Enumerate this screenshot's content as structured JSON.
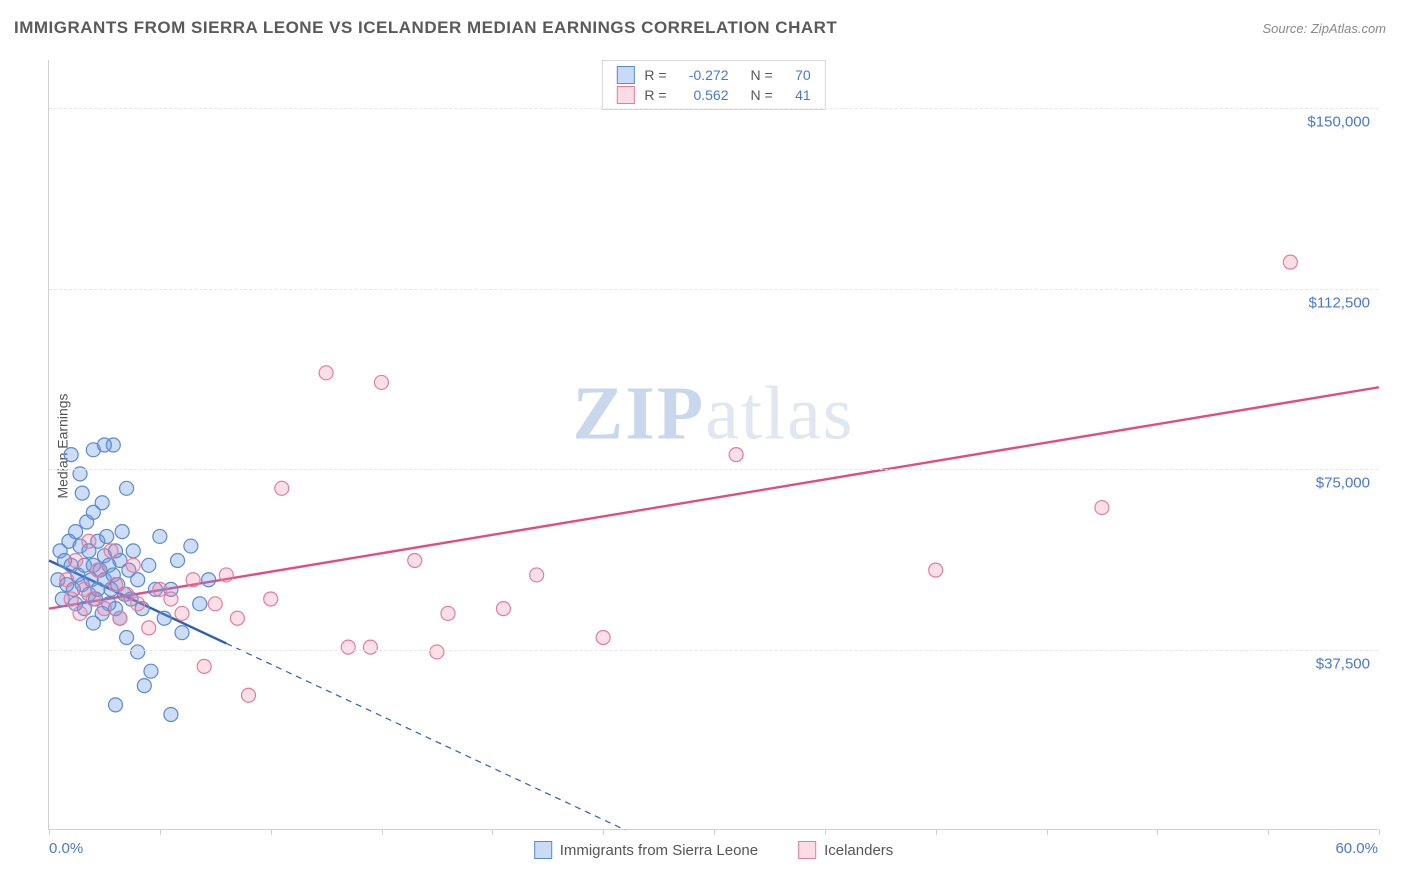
{
  "title": "IMMIGRANTS FROM SIERRA LEONE VS ICELANDER MEDIAN EARNINGS CORRELATION CHART",
  "source": "Source: ZipAtlas.com",
  "watermark_a": "ZIP",
  "watermark_b": "atlas",
  "chart": {
    "type": "scatter-with-regression",
    "ylabel": "Median Earnings",
    "xlim": [
      0,
      60
    ],
    "ylim": [
      0,
      160000
    ],
    "x_ticks_minor": [
      0,
      5,
      10,
      15,
      20,
      25,
      30,
      35,
      40,
      45,
      50,
      55,
      60
    ],
    "x_axis_start_label": "0.0%",
    "x_axis_end_label": "60.0%",
    "y_gridlines": [
      37500,
      75000,
      112500,
      150000
    ],
    "y_tick_labels": [
      "$37,500",
      "$75,000",
      "$112,500",
      "$150,000"
    ],
    "background_color": "#ffffff",
    "grid_color": "#e6e6e6",
    "axis_color": "#d0d0d0",
    "tick_label_color": "#4a76d6",
    "marker_radius": 7,
    "marker_stroke_width": 1.2,
    "series": [
      {
        "name": "Immigrants from Sierra Leone",
        "R": "-0.272",
        "N": "70",
        "color_fill": "rgba(100,150,230,0.32)",
        "color_stroke": "#5a8ad0",
        "regression": {
          "x1": 0,
          "y1": 56000,
          "x2": 26,
          "y2": 0,
          "solid_until_x": 8,
          "stroke": "#2f5db8",
          "stroke_width": 2.4
        },
        "points": [
          [
            0.4,
            52000
          ],
          [
            0.5,
            58000
          ],
          [
            0.6,
            48000
          ],
          [
            0.7,
            56000
          ],
          [
            0.8,
            51000
          ],
          [
            0.9,
            60000
          ],
          [
            1.0,
            55000
          ],
          [
            1.1,
            50000
          ],
          [
            1.2,
            62000
          ],
          [
            1.2,
            47000
          ],
          [
            1.3,
            53000
          ],
          [
            1.4,
            59000
          ],
          [
            1.5,
            51000
          ],
          [
            1.5,
            70000
          ],
          [
            1.6,
            46000
          ],
          [
            1.6,
            55000
          ],
          [
            1.7,
            64000
          ],
          [
            1.8,
            49000
          ],
          [
            1.8,
            58000
          ],
          [
            1.9,
            52000
          ],
          [
            2.0,
            55000
          ],
          [
            2.0,
            79000
          ],
          [
            2.0,
            66000
          ],
          [
            2.1,
            48000
          ],
          [
            2.2,
            60000
          ],
          [
            2.2,
            50000
          ],
          [
            2.3,
            54000
          ],
          [
            2.4,
            68000
          ],
          [
            2.4,
            45000
          ],
          [
            2.5,
            57000
          ],
          [
            2.5,
            52000
          ],
          [
            2.6,
            61000
          ],
          [
            2.7,
            47000
          ],
          [
            2.7,
            55000
          ],
          [
            2.8,
            50000
          ],
          [
            2.9,
            80000
          ],
          [
            2.9,
            53000
          ],
          [
            3.0,
            58000
          ],
          [
            3.0,
            46000
          ],
          [
            3.1,
            51000
          ],
          [
            3.2,
            44000
          ],
          [
            3.2,
            56000
          ],
          [
            3.3,
            62000
          ],
          [
            3.4,
            49000
          ],
          [
            3.5,
            71000
          ],
          [
            3.5,
            40000
          ],
          [
            3.6,
            54000
          ],
          [
            3.7,
            48000
          ],
          [
            3.8,
            58000
          ],
          [
            4.0,
            37000
          ],
          [
            4.0,
            52000
          ],
          [
            4.2,
            46000
          ],
          [
            4.3,
            30000
          ],
          [
            4.5,
            55000
          ],
          [
            4.6,
            33000
          ],
          [
            4.8,
            50000
          ],
          [
            5.0,
            61000
          ],
          [
            5.2,
            44000
          ],
          [
            5.5,
            24000
          ],
          [
            5.5,
            50000
          ],
          [
            5.8,
            56000
          ],
          [
            6.0,
            41000
          ],
          [
            6.4,
            59000
          ],
          [
            6.8,
            47000
          ],
          [
            7.2,
            52000
          ],
          [
            3.0,
            26000
          ],
          [
            2.5,
            80000
          ],
          [
            1.0,
            78000
          ],
          [
            1.4,
            74000
          ],
          [
            2.0,
            43000
          ]
        ]
      },
      {
        "name": "Icelanders",
        "R": "0.562",
        "N": "41",
        "color_fill": "rgba(240,130,160,0.26)",
        "color_stroke": "#e57ba0",
        "regression": {
          "x1": 0,
          "y1": 46000,
          "x2": 60,
          "y2": 92000,
          "solid_until_x": 60,
          "stroke": "#e34c82",
          "stroke_width": 2.4
        },
        "points": [
          [
            0.8,
            52000
          ],
          [
            1.0,
            48000
          ],
          [
            1.2,
            56000
          ],
          [
            1.4,
            45000
          ],
          [
            1.6,
            50000
          ],
          [
            1.8,
            60000
          ],
          [
            2.0,
            48000
          ],
          [
            2.2,
            54000
          ],
          [
            2.5,
            46000
          ],
          [
            2.8,
            58000
          ],
          [
            3.0,
            51000
          ],
          [
            3.2,
            44000
          ],
          [
            3.5,
            49000
          ],
          [
            3.8,
            55000
          ],
          [
            4.0,
            47000
          ],
          [
            4.5,
            42000
          ],
          [
            5.0,
            50000
          ],
          [
            5.5,
            48000
          ],
          [
            6.0,
            45000
          ],
          [
            6.5,
            52000
          ],
          [
            7.0,
            34000
          ],
          [
            7.5,
            47000
          ],
          [
            8.0,
            53000
          ],
          [
            8.5,
            44000
          ],
          [
            9.0,
            28000
          ],
          [
            10.0,
            48000
          ],
          [
            10.5,
            71000
          ],
          [
            12.5,
            95000
          ],
          [
            13.5,
            38000
          ],
          [
            14.5,
            38000
          ],
          [
            15.0,
            93000
          ],
          [
            16.5,
            56000
          ],
          [
            17.5,
            37000
          ],
          [
            18.0,
            45000
          ],
          [
            20.5,
            46000
          ],
          [
            22.0,
            53000
          ],
          [
            25.0,
            40000
          ],
          [
            31.0,
            78000
          ],
          [
            40.0,
            54000
          ],
          [
            47.5,
            67000
          ],
          [
            56.0,
            118000
          ]
        ]
      }
    ],
    "legend_bottom": [
      {
        "label": "Immigrants from Sierra Leone",
        "swatch": "blue"
      },
      {
        "label": "Icelanders",
        "swatch": "pink"
      }
    ]
  }
}
